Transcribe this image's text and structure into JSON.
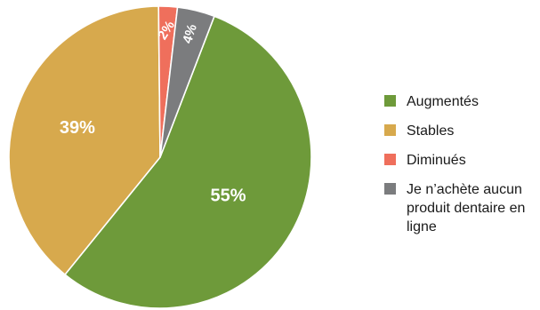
{
  "chart_data": {
    "type": "pie",
    "slices": [
      {
        "label": "Augmentés",
        "value": 55,
        "display": "55%",
        "color": "#6E9A3A"
      },
      {
        "label": "Stables",
        "value": 39,
        "display": "39%",
        "color": "#D7A94D"
      },
      {
        "label": "Diminués",
        "value": 2,
        "display": "2%",
        "color": "#EF6F5C"
      },
      {
        "label": "Je n’achète aucun produit dentaire en ligne",
        "value": 4,
        "display": "4%",
        "color": "#7B7C7E"
      }
    ],
    "legend_position": "right",
    "label_rotation": {
      "2%": -58,
      "4%": -72
    }
  }
}
